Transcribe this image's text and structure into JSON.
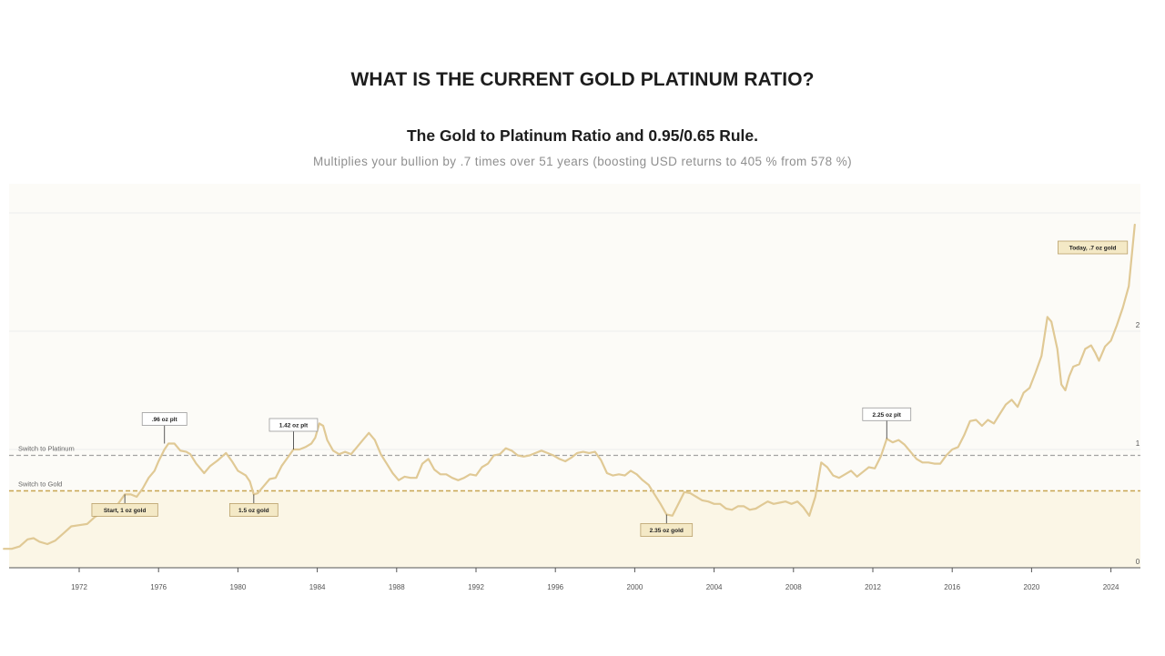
{
  "page": {
    "title": "WHAT IS THE CURRENT GOLD PLATINUM RATIO?"
  },
  "colors": {
    "line": "#e0c995",
    "plot_background": "#fcfbf7",
    "gold_zone": "#fbf6e6",
    "switch_gold_line": "#c8a551",
    "switch_platinum_line": "#a3a3a3",
    "annotation_fill_gold": "#f4e9c6",
    "annotation_fill_platinum": "#ffffff"
  },
  "chart_data": {
    "type": "line",
    "title": "The Gold to Platinum Ratio and 0.95/0.65 Rule.",
    "subtitle": "Multiplies your bullion by .7 times over 51 years (boosting USD returns to 405 % from 578 %)",
    "xlabel": "",
    "ylabel": "",
    "xlim": [
      1968.2,
      2025.2
    ],
    "ylim": [
      0,
      2.9
    ],
    "x_ticks": [
      "1972",
      "1976",
      "1980",
      "1984",
      "1988",
      "1992",
      "1996",
      "2000",
      "2004",
      "2008",
      "2012",
      "2016",
      "2020",
      "2024"
    ],
    "y_ticks": [
      "0",
      "1",
      "2"
    ],
    "grid": "horizontal",
    "thresholds": [
      {
        "label": "Switch to Platinum",
        "value": 0.95
      },
      {
        "label": "Switch to Gold",
        "value": 0.65
      }
    ],
    "series": [
      {
        "points": [
          [
            1968.2,
            0.16
          ],
          [
            1968.6,
            0.16
          ],
          [
            1969.0,
            0.18
          ],
          [
            1969.4,
            0.24
          ],
          [
            1969.7,
            0.25
          ],
          [
            1970.0,
            0.22
          ],
          [
            1970.4,
            0.2
          ],
          [
            1970.8,
            0.23
          ],
          [
            1971.2,
            0.29
          ],
          [
            1971.6,
            0.35
          ],
          [
            1972.0,
            0.36
          ],
          [
            1972.4,
            0.37
          ],
          [
            1972.8,
            0.43
          ],
          [
            1973.2,
            0.47
          ],
          [
            1973.6,
            0.45
          ],
          [
            1974.0,
            0.55
          ],
          [
            1974.3,
            0.62
          ],
          [
            1974.6,
            0.62
          ],
          [
            1974.9,
            0.6
          ],
          [
            1975.2,
            0.67
          ],
          [
            1975.5,
            0.76
          ],
          [
            1975.8,
            0.82
          ],
          [
            1976.0,
            0.9
          ],
          [
            1976.3,
            1.0
          ],
          [
            1976.5,
            1.05
          ],
          [
            1976.8,
            1.05
          ],
          [
            1977.1,
            0.99
          ],
          [
            1977.4,
            0.98
          ],
          [
            1977.6,
            0.96
          ],
          [
            1977.9,
            0.88
          ],
          [
            1978.3,
            0.8
          ],
          [
            1978.6,
            0.86
          ],
          [
            1979.0,
            0.91
          ],
          [
            1979.4,
            0.97
          ],
          [
            1979.7,
            0.9
          ],
          [
            1980.0,
            0.82
          ],
          [
            1980.4,
            0.78
          ],
          [
            1980.6,
            0.73
          ],
          [
            1980.8,
            0.62
          ],
          [
            1981.0,
            0.63
          ],
          [
            1981.3,
            0.69
          ],
          [
            1981.6,
            0.75
          ],
          [
            1981.9,
            0.76
          ],
          [
            1982.2,
            0.86
          ],
          [
            1982.5,
            0.93
          ],
          [
            1982.8,
            1.0
          ],
          [
            1983.1,
            1.0
          ],
          [
            1983.4,
            1.02
          ],
          [
            1983.7,
            1.05
          ],
          [
            1983.9,
            1.1
          ],
          [
            1984.1,
            1.22
          ],
          [
            1984.3,
            1.2
          ],
          [
            1984.5,
            1.08
          ],
          [
            1984.8,
            0.99
          ],
          [
            1985.1,
            0.96
          ],
          [
            1985.4,
            0.98
          ],
          [
            1985.7,
            0.96
          ],
          [
            1986.0,
            1.02
          ],
          [
            1986.3,
            1.08
          ],
          [
            1986.6,
            1.14
          ],
          [
            1986.9,
            1.08
          ],
          [
            1987.2,
            0.96
          ],
          [
            1987.5,
            0.88
          ],
          [
            1987.8,
            0.8
          ],
          [
            1988.1,
            0.74
          ],
          [
            1988.4,
            0.77
          ],
          [
            1988.7,
            0.76
          ],
          [
            1989.0,
            0.76
          ],
          [
            1989.3,
            0.88
          ],
          [
            1989.6,
            0.92
          ],
          [
            1989.9,
            0.83
          ],
          [
            1990.2,
            0.79
          ],
          [
            1990.5,
            0.79
          ],
          [
            1990.8,
            0.76
          ],
          [
            1991.1,
            0.74
          ],
          [
            1991.4,
            0.76
          ],
          [
            1991.7,
            0.79
          ],
          [
            1992.0,
            0.78
          ],
          [
            1992.3,
            0.85
          ],
          [
            1992.6,
            0.88
          ],
          [
            1992.9,
            0.95
          ],
          [
            1993.2,
            0.96
          ],
          [
            1993.5,
            1.01
          ],
          [
            1993.8,
            0.99
          ],
          [
            1994.1,
            0.95
          ],
          [
            1994.4,
            0.94
          ],
          [
            1994.7,
            0.95
          ],
          [
            1995.0,
            0.97
          ],
          [
            1995.3,
            0.99
          ],
          [
            1995.6,
            0.97
          ],
          [
            1995.9,
            0.95
          ],
          [
            1996.2,
            0.92
          ],
          [
            1996.5,
            0.9
          ],
          [
            1996.8,
            0.93
          ],
          [
            1997.1,
            0.97
          ],
          [
            1997.4,
            0.98
          ],
          [
            1997.7,
            0.97
          ],
          [
            1998.0,
            0.98
          ],
          [
            1998.3,
            0.91
          ],
          [
            1998.6,
            0.8
          ],
          [
            1998.9,
            0.78
          ],
          [
            1999.2,
            0.79
          ],
          [
            1999.5,
            0.78
          ],
          [
            1999.8,
            0.82
          ],
          [
            2000.1,
            0.79
          ],
          [
            2000.4,
            0.74
          ],
          [
            2000.7,
            0.7
          ],
          [
            2001.0,
            0.62
          ],
          [
            2001.3,
            0.54
          ],
          [
            2001.6,
            0.45
          ],
          [
            2001.9,
            0.44
          ],
          [
            2002.2,
            0.54
          ],
          [
            2002.5,
            0.64
          ],
          [
            2002.8,
            0.63
          ],
          [
            2003.1,
            0.6
          ],
          [
            2003.4,
            0.57
          ],
          [
            2003.7,
            0.56
          ],
          [
            2004.0,
            0.54
          ],
          [
            2004.3,
            0.54
          ],
          [
            2004.6,
            0.5
          ],
          [
            2004.9,
            0.49
          ],
          [
            2005.2,
            0.52
          ],
          [
            2005.5,
            0.52
          ],
          [
            2005.8,
            0.49
          ],
          [
            2006.1,
            0.5
          ],
          [
            2006.4,
            0.53
          ],
          [
            2006.7,
            0.56
          ],
          [
            2007.0,
            0.54
          ],
          [
            2007.3,
            0.55
          ],
          [
            2007.6,
            0.56
          ],
          [
            2007.9,
            0.54
          ],
          [
            2008.2,
            0.56
          ],
          [
            2008.5,
            0.51
          ],
          [
            2008.8,
            0.44
          ],
          [
            2009.1,
            0.6
          ],
          [
            2009.4,
            0.89
          ],
          [
            2009.7,
            0.85
          ],
          [
            2010.0,
            0.78
          ],
          [
            2010.3,
            0.76
          ],
          [
            2010.6,
            0.79
          ],
          [
            2010.9,
            0.82
          ],
          [
            2011.2,
            0.77
          ],
          [
            2011.5,
            0.81
          ],
          [
            2011.8,
            0.85
          ],
          [
            2012.1,
            0.84
          ],
          [
            2012.4,
            0.94
          ],
          [
            2012.7,
            1.09
          ],
          [
            2013.0,
            1.06
          ],
          [
            2013.3,
            1.08
          ],
          [
            2013.6,
            1.04
          ],
          [
            2013.9,
            0.98
          ],
          [
            2014.2,
            0.92
          ],
          [
            2014.5,
            0.89
          ],
          [
            2014.8,
            0.89
          ],
          [
            2015.1,
            0.88
          ],
          [
            2015.4,
            0.88
          ],
          [
            2015.7,
            0.95
          ],
          [
            2016.0,
            1.0
          ],
          [
            2016.3,
            1.02
          ],
          [
            2016.6,
            1.12
          ],
          [
            2016.9,
            1.24
          ],
          [
            2017.2,
            1.25
          ],
          [
            2017.5,
            1.2
          ],
          [
            2017.8,
            1.25
          ],
          [
            2018.1,
            1.22
          ],
          [
            2018.4,
            1.3
          ],
          [
            2018.7,
            1.38
          ],
          [
            2019.0,
            1.42
          ],
          [
            2019.3,
            1.36
          ],
          [
            2019.6,
            1.48
          ],
          [
            2019.9,
            1.52
          ],
          [
            2020.2,
            1.65
          ],
          [
            2020.5,
            1.79
          ],
          [
            2020.8,
            2.12
          ],
          [
            2021.0,
            2.08
          ],
          [
            2021.3,
            1.85
          ],
          [
            2021.5,
            1.55
          ],
          [
            2021.7,
            1.5
          ],
          [
            2021.9,
            1.62
          ],
          [
            2022.1,
            1.7
          ],
          [
            2022.4,
            1.72
          ],
          [
            2022.7,
            1.85
          ],
          [
            2023.0,
            1.88
          ],
          [
            2023.2,
            1.82
          ],
          [
            2023.4,
            1.75
          ],
          [
            2023.7,
            1.87
          ],
          [
            2024.0,
            1.92
          ],
          [
            2024.3,
            2.05
          ],
          [
            2024.6,
            2.2
          ],
          [
            2024.9,
            2.38
          ],
          [
            2025.2,
            2.9
          ]
        ]
      }
    ],
    "annotations": [
      {
        "text": "Start, 1 oz gold",
        "x": 1974.3,
        "y": 0.62,
        "box": "gold",
        "placement": "below"
      },
      {
        "text": ".96 oz plt",
        "x": 1976.3,
        "y": 1.05,
        "box": "platinum",
        "placement": "above"
      },
      {
        "text": "1.5 oz gold",
        "x": 1980.8,
        "y": 0.62,
        "box": "gold",
        "placement": "below"
      },
      {
        "text": "1.42 oz plt",
        "x": 1982.8,
        "y": 1.0,
        "box": "platinum",
        "placement": "above"
      },
      {
        "text": "2.35 oz gold",
        "x": 2001.6,
        "y": 0.45,
        "box": "gold",
        "placement": "below"
      },
      {
        "text": "2.25 oz plt",
        "x": 2012.7,
        "y": 1.09,
        "box": "platinum",
        "placement": "above"
      },
      {
        "text": "Today, .7 oz gold",
        "x": 2025.2,
        "y": 2.9,
        "box": "gold",
        "placement": "left"
      }
    ]
  }
}
